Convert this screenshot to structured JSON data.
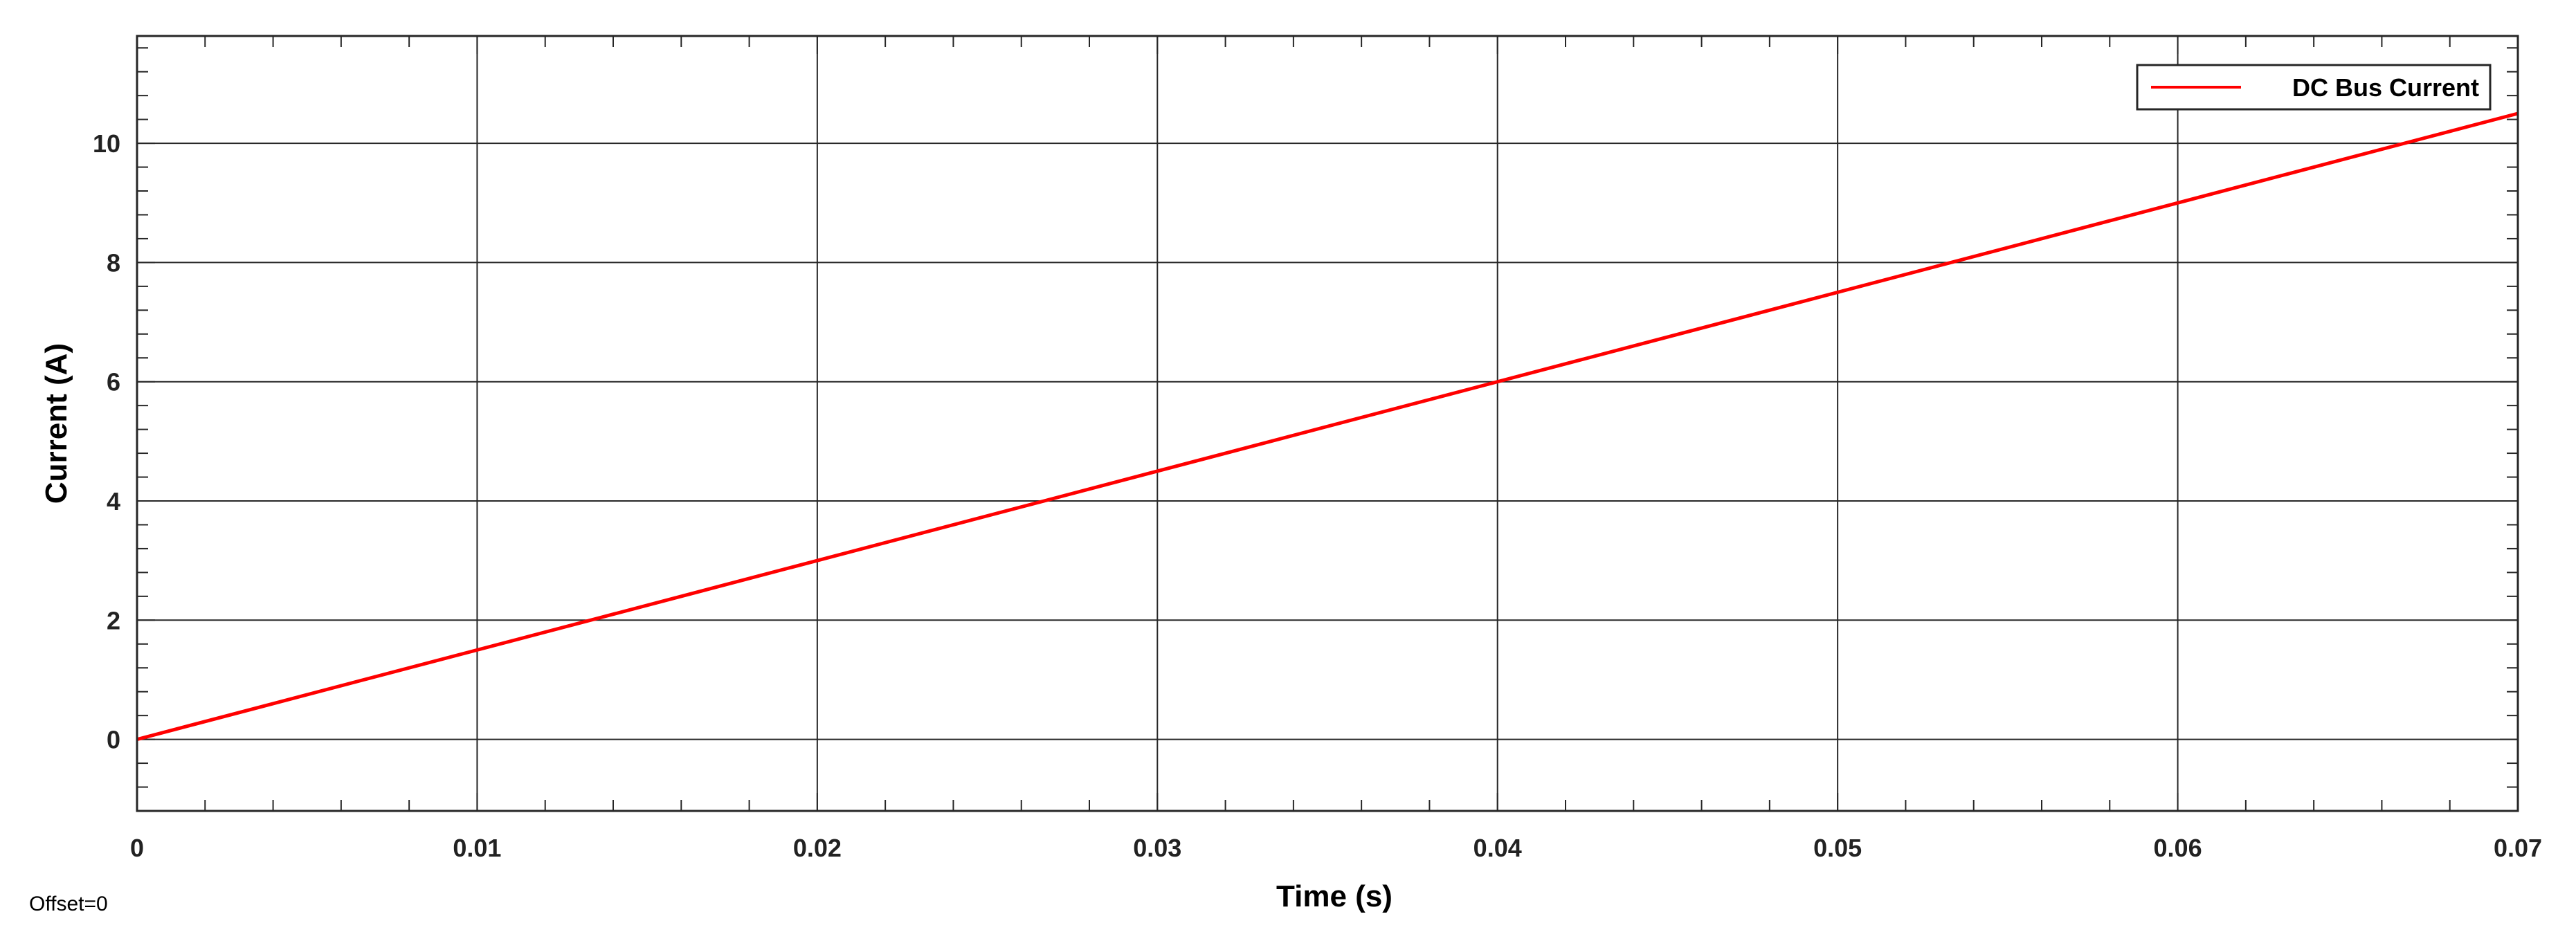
{
  "footer": {
    "offset_text": "Offset=0"
  },
  "colors": {
    "series": "#ff0000",
    "grid": "#262626",
    "axes": "#262626",
    "background": "#ffffff"
  },
  "chart_data": {
    "type": "line",
    "title": "",
    "xlabel": "Time (s)",
    "ylabel": "Current (A)",
    "xlim": [
      0,
      0.07
    ],
    "ylim": [
      -1.2,
      11.8
    ],
    "xticks": [
      0,
      0.01,
      0.02,
      0.03,
      0.04,
      0.05,
      0.06,
      0.07
    ],
    "xtick_labels": [
      "0",
      "0.01",
      "0.02",
      "0.03",
      "0.04",
      "0.05",
      "0.06",
      "0.07"
    ],
    "yticks": [
      0,
      2,
      4,
      6,
      8,
      10
    ],
    "ytick_labels": [
      "0",
      "2",
      "4",
      "6",
      "8",
      "10"
    ],
    "grid": true,
    "legend": {
      "position": "top-right",
      "entries": [
        "DC Bus Current"
      ]
    },
    "series": [
      {
        "name": "DC Bus Current",
        "x": [
          0,
          0.07
        ],
        "y": [
          0,
          10.5
        ]
      }
    ]
  }
}
